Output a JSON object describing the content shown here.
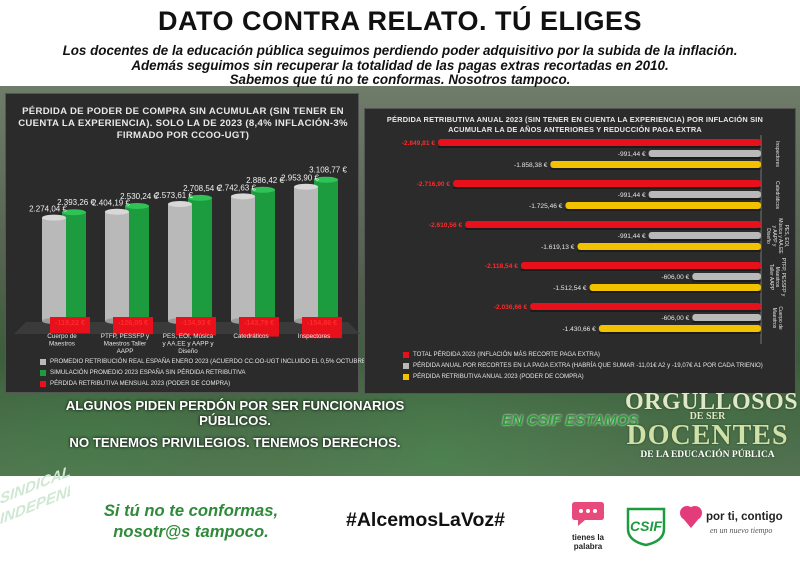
{
  "header": {
    "title": "DATO CONTRA RELATO. TÚ ELIGES",
    "intro": [
      "Los docentes de la educación pública seguimos perdiendo poder adquisitivo por la subida de la inflación.",
      "Además seguimos sin recuperar la totalidad de las pagas extras recortadas en 2010.",
      "Sabemos que tú no te conformas. Nosotros tampoco."
    ]
  },
  "colors": {
    "gray": "#b9b9b9",
    "green": "#1d9b3f",
    "red": "#e8101b",
    "yellow": "#f2c200",
    "panel": "#2b2b2b"
  },
  "chart_data": [
    {
      "type": "bar",
      "title": "PÉRDIDA DE PODER DE COMPRA SIN ACUMULAR (SIN TENER EN CUENTA LA EXPERIENCIA). SOLO LA DE 2023 (8,4% INFLACIÓN-3% FIRMADO POR CCOO-UGT)",
      "categories": [
        "Cuerpo de Maestros",
        "PTFP, PESSFP y Maestros Taller AAPP",
        "PES, EOI, Música y AA.EE y AAPP y Diseño",
        "Catedráticos",
        "Inspectores"
      ],
      "series": [
        {
          "name": "PROMEDIO RETRIBUCIÓN REAL  ESPAÑA ENERO 2023 (ACUERDO CC.OO-UGT INCLUIDO EL 0,5% OCTUBRE)",
          "color": "#b9b9b9",
          "values": [
            2274.04,
            2404.19,
            2573.61,
            2742.63,
            2953.9
          ],
          "labels": [
            "2.274,04 €",
            "2.404,19 €",
            "2.573,61 €",
            "2.742,63 €",
            "2.953,90 €"
          ]
        },
        {
          "name": "SIMULACIÓN PROMEDIO 2023 ESPAÑA SIN PÉRDIDA RETRIBUTIVA",
          "color": "#1d9b3f",
          "values": [
            2393.26,
            2530.24,
            2708.54,
            2886.42,
            3108.77
          ],
          "labels": [
            "2.393,26 €",
            "2.530,24 €",
            "2.708,54 €",
            "2.886,42 €",
            "3.108,77 €"
          ]
        },
        {
          "name": "PÉRDIDA RETRIBUTIVA MENSUAL 2023 (PODER DE COMPRA)",
          "color": "#e8101b",
          "values": [
            -119.22,
            -126.05,
            -134.93,
            -143.79,
            -154.86
          ],
          "labels": [
            "-119,22 €",
            "-126,05 €",
            "-134,93 €",
            "-143,79 €",
            "-154,86 €"
          ]
        }
      ],
      "ylim": [
        -200,
        3300
      ],
      "grid": false,
      "legend": "bottom"
    },
    {
      "type": "bar",
      "orientation": "horizontal",
      "title": "PÉRDIDA RETRIBUTIVA ANUAL 2023 (SIN TENER EN CUENTA LA EXPERIENCIA) POR INFLACIÓN SIN ACUMULAR LA DE AÑOS ANTERIORES Y REDUCCIÓN PAGA EXTRA",
      "categories": [
        "Inspectores",
        "Catedráticos",
        "PES, EOI, Música y AA.EE y AAPP y Diseño",
        "PTFP, PESSFP y Maestros Taller AAPP",
        "Cuerpo de Maestros"
      ],
      "series": [
        {
          "name": "TOTAL PÉRDIDA 2023 (INFLACIÓN MÁS RECORTE PAGA EXTRA)",
          "color": "#e8101b",
          "values": [
            -2849.81,
            -2716.9,
            -2610.56,
            -2118.54,
            -2036.66
          ],
          "labels": [
            "-2.849,81 €",
            "-2.716,90 €",
            "-2.610,56 €",
            "-2.118,54 €",
            "-2.036,66 €"
          ]
        },
        {
          "name": "PÉRDIDA ANUAL POR RECORTES EN LA PAGA EXTRA (HABRÍA QUE SUMAR -11,01€ A2 y -19,07€ A1 POR CADA TRIENIO)",
          "color": "#b9b9b9",
          "values": [
            -991.44,
            -991.44,
            -991.44,
            -606.0,
            -606.0
          ],
          "labels": [
            "-991,44 €",
            "-991,44 €",
            "-991,44 €",
            "-606,00 €",
            "-606,00 €"
          ]
        },
        {
          "name": "PÉRDIDA RETRIBUTIVA ANUAL 2023 (PODER DE COMPRA)",
          "color": "#f2c200",
          "values": [
            -1858.38,
            -1725.46,
            -1619.13,
            -1512.54,
            -1430.66
          ],
          "labels": [
            "-1.858,38 €",
            "-1.725,46 €",
            "-1.619,13 €",
            "-1.512,54 €",
            "-1.430,66 €"
          ]
        }
      ],
      "xlim": [
        -3000,
        0
      ],
      "grid": false,
      "legend": "bottom"
    }
  ],
  "slogans": {
    "line1": "ALGUNOS PIDEN PERDÓN POR SER FUNCIONARIOS PÚBLICOS.",
    "line2": "NO TENEMOS PRIVILEGIOS. TENEMOS DERECHOS.",
    "csif": "EN CSIF ESTAMOS",
    "org1": "ORGULLOSOS",
    "org2": "DE SER",
    "org3": "DOCENTES",
    "org4": "DE LA EDUCACIÓN PÚBLICA"
  },
  "footer": {
    "left_line1": "Si tú no te conformas,",
    "left_line2": "nosotr@s tampoco.",
    "hashtag": "#AlcemosLaVoz#",
    "logo_tp": "tienes la palabra",
    "logo_csif": "CSIF",
    "logo_pt_title": "por ti, contigo",
    "logo_pt_sub": "en un nuevo tiempo",
    "deco": "SINDICAL INDEPENDIENTE"
  }
}
